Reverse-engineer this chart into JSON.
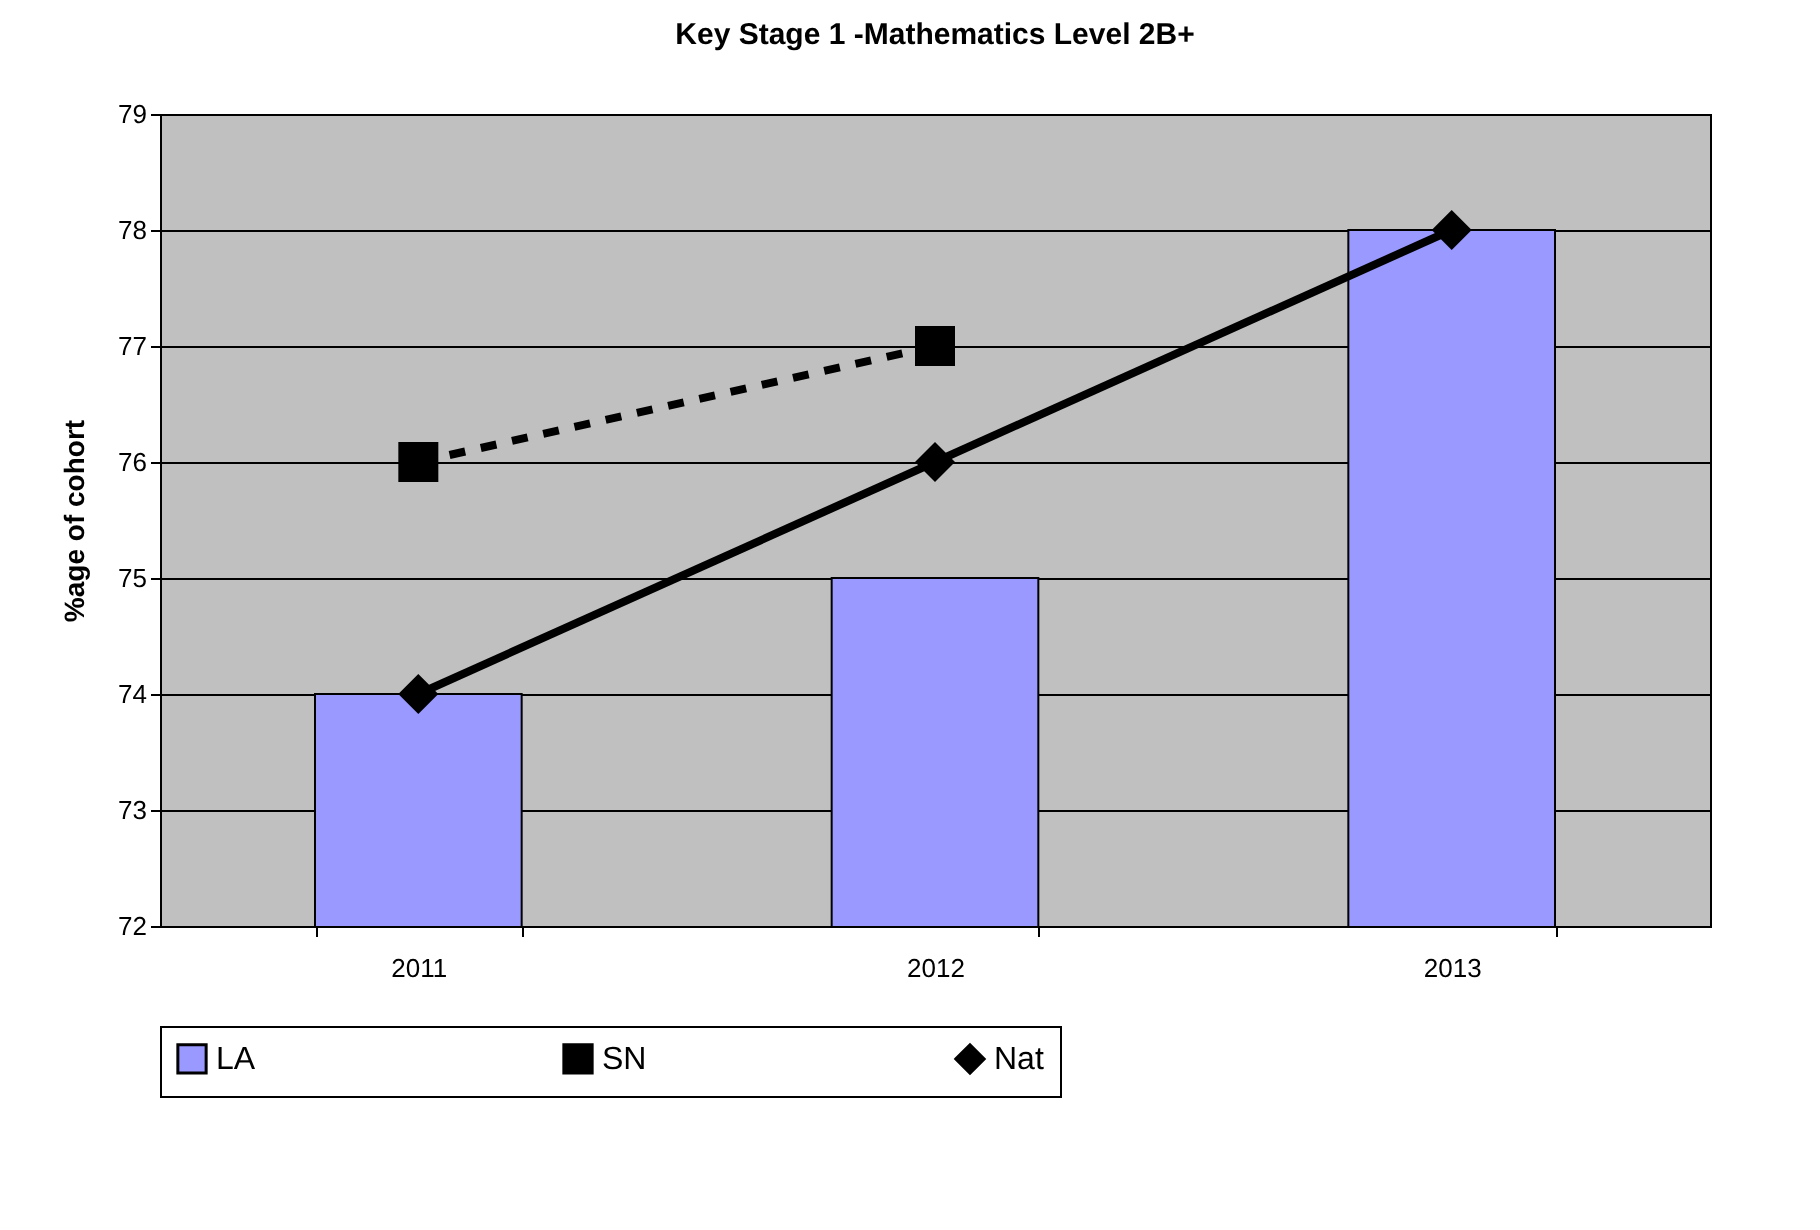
{
  "chart_data": {
    "type": "bar",
    "title": "Key Stage 1 -Mathematics Level 2B+",
    "ylabel": "%age of cohort",
    "categories": [
      "2011",
      "2012",
      "2013"
    ],
    "ylim": [
      72,
      79
    ],
    "yticks": [
      72,
      73,
      74,
      75,
      76,
      77,
      78,
      79
    ],
    "grid": "y",
    "legend": "bottom",
    "series": [
      {
        "name": "LA",
        "color": "#9999ff",
        "values": [
          74,
          75,
          78
        ]
      },
      {
        "name": "SN",
        "type": "line",
        "color": "#000000",
        "marker": "square",
        "line_style": "dashed",
        "values": [
          76,
          77,
          null
        ]
      },
      {
        "name": "Nat",
        "type": "line",
        "color": "#000000",
        "marker": "diamond",
        "line_style": "solid",
        "values": [
          74,
          76,
          78
        ]
      }
    ]
  }
}
